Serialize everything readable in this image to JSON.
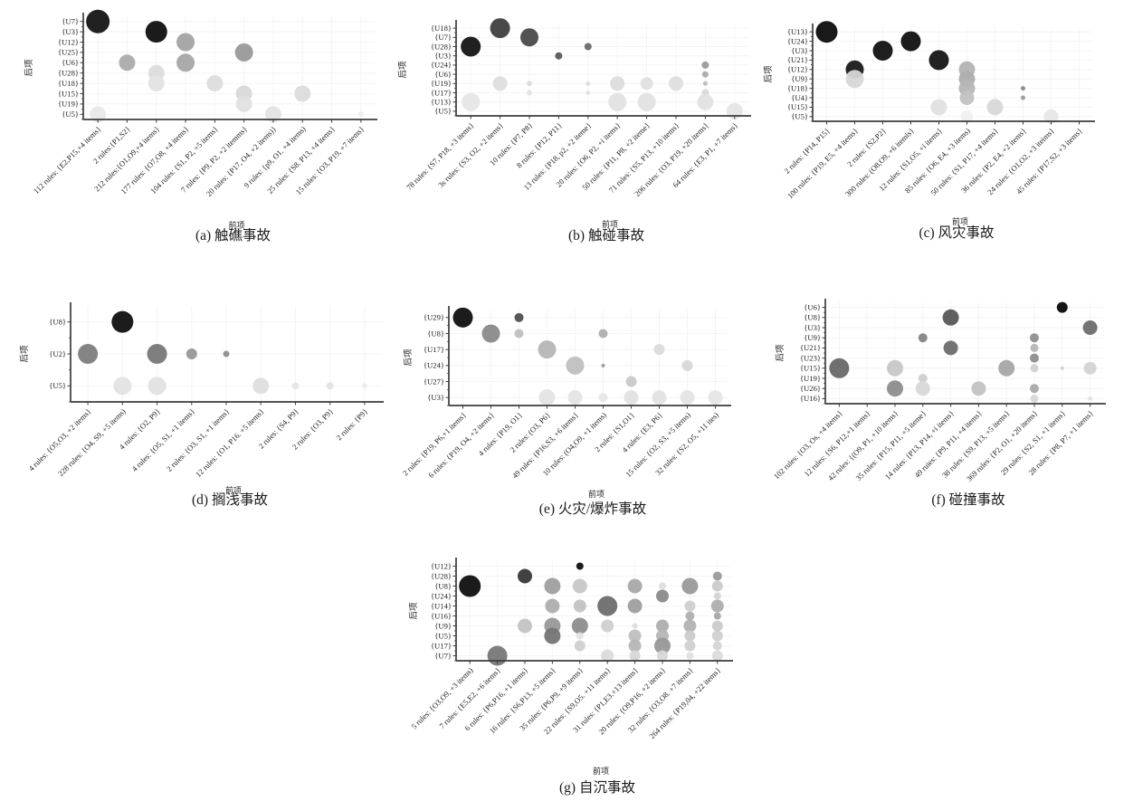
{
  "page": {
    "background": "#ffffff",
    "axis_color": "#3c3c3c",
    "grid_color": "#f4f4f4"
  },
  "bubble_fields": [
    "col_index",
    "row_index",
    "radius_px",
    "fill_gray"
  ],
  "chart_data": [
    {
      "id": "a",
      "type": "bubble",
      "caption": "(a) 触礁事故",
      "xlabel": "前项",
      "ylabel": "后项",
      "rows": [
        "{U7}",
        "{U3}",
        "{U12}",
        "{U25}",
        "{U6}",
        "{U28}",
        "{U18}",
        "{U15}",
        "{U19}",
        "{U5}"
      ],
      "cols": [
        "112 rules: {E2,P15,+4 items}",
        "2 rules:{P1,S2}",
        "212 rules:{O1,O9,+4 items}",
        "177 rules: {O7,O8, +4 items}",
        "104 rules: {S1, P2, +5 items}",
        "7 rules: {P9, P2, +2 itemms}",
        "20 rules: {P17, O4, +2 items)}",
        "9 rules: {p9, O1. +4 items)",
        "25 rules: {S8. P13, +4 items}",
        "15 rules: {O3, P19, +7 items}"
      ],
      "bubbles": [
        [
          0,
          0,
          13,
          "#151515"
        ],
        [
          0,
          9,
          9,
          "#e9e9e9"
        ],
        [
          1,
          4,
          9,
          "#ababab"
        ],
        [
          2,
          1,
          12,
          "#0f0f0f"
        ],
        [
          2,
          5,
          9,
          "#dcdcdc"
        ],
        [
          2,
          6,
          9,
          "#e3e3e3"
        ],
        [
          3,
          2,
          10,
          "#a3a3a3"
        ],
        [
          3,
          4,
          10,
          "#a6a6a6"
        ],
        [
          4,
          6,
          9,
          "#dddddd"
        ],
        [
          5,
          3,
          10,
          "#999999"
        ],
        [
          5,
          7,
          9,
          "#d9d9d9"
        ],
        [
          5,
          8,
          9,
          "#e2e2e2"
        ],
        [
          6,
          9,
          9,
          "#e4e4e4"
        ],
        [
          7,
          7,
          9,
          "#dcdcdc"
        ],
        [
          9,
          9,
          3,
          "#ededed"
        ]
      ]
    },
    {
      "id": "b",
      "type": "bubble",
      "caption": "(b) 触碰事故",
      "xlabel": "前项",
      "ylabel": "后项",
      "rows": [
        "{U18}",
        "{U7}",
        "{U28}",
        "{U3}",
        "{U24}",
        "{U6}",
        "{U19}",
        "{U17}",
        "{U13}",
        "{U5}"
      ],
      "cols": [
        "78 rules: {S7, P18, +3 items}",
        "3s rules: {S3, O2, +2 items}",
        "10 rules: {P7, P8}",
        "8 rules: {P12, P11}",
        "13 rules: {P18, p2, +2 iteme}",
        "20 rules: {O6, P2, +i items}",
        "50 rules: {P11, P8, +2 iteme}",
        "71 rules: {S5, P13, +10 items}",
        "206 rules: {O3, P19, +20 items}",
        "64 rules: {E3, P1, +7 items}"
      ],
      "bubbles": [
        [
          0,
          2,
          11,
          "#141414"
        ],
        [
          0,
          8,
          10,
          "#e6e6e6"
        ],
        [
          1,
          0,
          11,
          "#3f3f3f"
        ],
        [
          1,
          6,
          8,
          "#dedede"
        ],
        [
          2,
          1,
          10,
          "#4a4a4a"
        ],
        [
          2,
          6,
          3,
          "#dcdcdc"
        ],
        [
          2,
          7,
          3,
          "#e3e3e3"
        ],
        [
          3,
          3,
          4,
          "#5a5a5a"
        ],
        [
          4,
          2,
          4,
          "#6a6a6a"
        ],
        [
          4,
          6,
          2.5,
          "#dddddd"
        ],
        [
          4,
          7,
          2.5,
          "#e2e2e2"
        ],
        [
          5,
          6,
          8,
          "#dcdcdc"
        ],
        [
          5,
          8,
          10,
          "#e1e1e1"
        ],
        [
          6,
          6,
          7,
          "#e0e0e0"
        ],
        [
          6,
          8,
          10,
          "#e2e2e2"
        ],
        [
          7,
          6,
          8,
          "#dedede"
        ],
        [
          8,
          4,
          4,
          "#9a9a9a"
        ],
        [
          8,
          5,
          3.5,
          "#ababab"
        ],
        [
          8,
          6,
          2.5,
          "#bdbdbd"
        ],
        [
          8,
          7,
          4,
          "#d8d8d8"
        ],
        [
          8,
          8,
          9,
          "#e2e2e2"
        ],
        [
          9,
          9,
          9,
          "#e5e5e5"
        ]
      ]
    },
    {
      "id": "c",
      "type": "bubble",
      "caption": "(c) 风灾事故",
      "xlabel": "前项",
      "ylabel": "后项",
      "rows": [
        "{U13}",
        "{U24}",
        "{U3}",
        "{U21}",
        "{U12}",
        "{U9}",
        "{U18}",
        "{U4}",
        "{U15}",
        "{U5}"
      ],
      "cols": [
        "2 rules: {P14, P15}",
        "100 rules: {P19, E5, +4 items}",
        "2 rules: {S2,P2}",
        "300 rules: (O8,O9, +6 itemis}",
        "12 rules: {S1,O5, +i items}",
        "85 rules: {O6, E4, +3 items)",
        "50 rules: {S1, P17, +4 items}",
        "36 rules: {P2, E4, +2 items}",
        "24 rules: {O1,O2, +3 iteims}",
        "45 rules: {P17,S2, +3 items}"
      ],
      "bubbles": [
        [
          0,
          0,
          12,
          "#0d0d0d"
        ],
        [
          1,
          4,
          10,
          "#1a1a1a"
        ],
        [
          1,
          5,
          10,
          "#d7d7d7"
        ],
        [
          2,
          2,
          11,
          "#121212"
        ],
        [
          3,
          1,
          11,
          "#101010"
        ],
        [
          4,
          3,
          11,
          "#161616"
        ],
        [
          4,
          8,
          9,
          "#e0e0e0"
        ],
        [
          5,
          4,
          9,
          "#b3b3b3"
        ],
        [
          5,
          5,
          9,
          "#aeaeae"
        ],
        [
          5,
          6,
          9,
          "#b6b6b6"
        ],
        [
          5,
          7,
          8,
          "#c2c2c2"
        ],
        [
          5,
          9,
          7,
          "#f1f1f1"
        ],
        [
          6,
          8,
          9,
          "#d8d8d8"
        ],
        [
          7,
          6,
          2.5,
          "#8a8a8a"
        ],
        [
          7,
          7,
          2.5,
          "#9a9a9a"
        ],
        [
          8,
          9,
          8,
          "#e7e7e7"
        ]
      ]
    },
    {
      "id": "d",
      "type": "bubble",
      "caption": "(d) 搁浅事故",
      "xlabel": "前项",
      "ylabel": "后项",
      "rows": [
        "{U8}",
        "{U2}",
        "{U5}"
      ],
      "cols": [
        "4 rules: {O5,O3, +2 items}",
        "228 rules: {O4, S9, +5 items)",
        "4 rules: {O2, P9}",
        "4 rules: {O5, S1, +1 items}",
        "2 rules: {O3, S1, +1 items}",
        "12 rules: {O1, P16. +5 items}",
        "2 rules: {S4, P9}",
        "2 rules: {O3, P9}",
        "2 rules: {P9}"
      ],
      "bubbles": [
        [
          0,
          1,
          11,
          "#7d7d7d"
        ],
        [
          1,
          0,
          12,
          "#101010"
        ],
        [
          1,
          2,
          10,
          "#e3e3e3"
        ],
        [
          2,
          1,
          11,
          "#787878"
        ],
        [
          2,
          2,
          10,
          "#e1e1e1"
        ],
        [
          3,
          1,
          6,
          "#979797"
        ],
        [
          4,
          1,
          3.5,
          "#8d8d8d"
        ],
        [
          5,
          2,
          9,
          "#dedede"
        ],
        [
          6,
          2,
          4,
          "#e6e6e6"
        ],
        [
          7,
          2,
          4,
          "#e3e3e3"
        ],
        [
          8,
          2,
          3,
          "#ececec"
        ]
      ]
    },
    {
      "id": "e",
      "type": "bubble",
      "caption": "(e) 火灾/爆炸事故",
      "xlabel": "前项",
      "ylabel": "后项",
      "rows": [
        "{U29}",
        "{U8}",
        "{U17}",
        "{U24}",
        "{U27}",
        "{U3}"
      ],
      "cols": [
        "2 rules: {P19, P6,+1 items}",
        "6 rules: {P19, O4, +2 items}",
        "4 rules: {P19, O1}",
        "2 rules: (O3, P6}",
        "49 rules: {P16,S3, +6 items}",
        "10 rules: (O4,O9, +1 items)",
        "2 rules: {S1,O1}",
        "4 rules: {E3, P6}",
        "15 rules: {O2, S3, +5 items)",
        "32 rules: {S2, O5, +11 ites)"
      ],
      "bubbles": [
        [
          0,
          0,
          11,
          "#101010"
        ],
        [
          1,
          1,
          10,
          "#8a8a8a"
        ],
        [
          2,
          0,
          5,
          "#4f4f4f"
        ],
        [
          2,
          1,
          5,
          "#bfbfbf"
        ],
        [
          3,
          2,
          10,
          "#b6b6b6"
        ],
        [
          3,
          5,
          9,
          "#e4e4e4"
        ],
        [
          4,
          3,
          10,
          "#bfbfbf"
        ],
        [
          4,
          5,
          8,
          "#e4e4e4"
        ],
        [
          5,
          1,
          5,
          "#aeaeae"
        ],
        [
          5,
          3,
          2,
          "#9a9a9a"
        ],
        [
          5,
          5,
          5,
          "#e7e7e7"
        ],
        [
          6,
          4,
          6,
          "#c9c9c9"
        ],
        [
          6,
          5,
          8,
          "#e2e2e2"
        ],
        [
          7,
          2,
          6,
          "#dbdbdb"
        ],
        [
          7,
          5,
          8,
          "#e2e2e2"
        ],
        [
          8,
          3,
          6,
          "#d7d7d7"
        ],
        [
          8,
          5,
          8,
          "#e4e4e4"
        ],
        [
          9,
          5,
          8,
          "#e6e6e6"
        ]
      ]
    },
    {
      "id": "f",
      "type": "bubble",
      "caption": "(f) 碰撞事故",
      "xlabel": "",
      "ylabel": "后项",
      "rows": [
        "{U6}",
        "{U8}",
        "{U3}",
        "{U9}",
        "{U21}",
        "{U23}",
        "{U15}",
        "{U19}",
        "{U26}",
        "{U16}"
      ],
      "cols": [
        "102 rules: {O3, Os, +4 items}",
        "12 rules: {S6, P12,+1 items}",
        "42 rules: {(O9, P1, +10 items}",
        "35 rules: {P15, P11, +5 iteme}",
        "14 rules: {P13, P14, +i items}",
        "49 ruies: {P9, P11, +4 items}",
        "38 rules: {S9, P13, +5 items}",
        "369 rules: {P2, O1, +20 items}",
        "29 rules: {S2, S1, +1 items}",
        "28 rules: {P8, P7, +1 items}"
      ],
      "bubbles": [
        [
          0,
          6,
          11,
          "#686868"
        ],
        [
          2,
          6,
          9,
          "#c7c7c7"
        ],
        [
          2,
          8,
          9,
          "#8d8d8d"
        ],
        [
          3,
          3,
          5,
          "#858585"
        ],
        [
          3,
          7,
          5,
          "#cfcfcf"
        ],
        [
          3,
          8,
          8,
          "#d8d8d8"
        ],
        [
          4,
          1,
          9,
          "#575757"
        ],
        [
          4,
          4,
          8,
          "#6d6d6d"
        ],
        [
          5,
          8,
          8,
          "#c3c3c3"
        ],
        [
          6,
          6,
          9,
          "#a7a7a7"
        ],
        [
          7,
          3,
          5,
          "#8f8f8f"
        ],
        [
          7,
          4,
          4.5,
          "#b6b6b6"
        ],
        [
          7,
          5,
          5,
          "#8d8d8d"
        ],
        [
          7,
          6,
          4.5,
          "#d1d1d1"
        ],
        [
          7,
          8,
          5,
          "#a9a9a9"
        ],
        [
          7,
          9,
          4.5,
          "#d7d7d7"
        ],
        [
          8,
          0,
          6,
          "#0a0a0a"
        ],
        [
          8,
          6,
          2,
          "#d0d0d0"
        ],
        [
          9,
          2,
          8,
          "#6d6d6d"
        ],
        [
          9,
          6,
          7,
          "#d4d4d4"
        ],
        [
          9,
          9,
          2.5,
          "#e0e0e0"
        ]
      ]
    },
    {
      "id": "g",
      "type": "bubble",
      "caption": "(g) 自沉事故",
      "xlabel": "前项",
      "ylabel": "后项",
      "rows": [
        "{U12}",
        "{U28}",
        "{U8}",
        "{U24}",
        "{U14}",
        "{U16}",
        "{U9}",
        "{U5}",
        "{U17}",
        "{U7}"
      ],
      "cols": [
        "5 rules: {O3,O9, +3 items)",
        "7 rules: {E5,E2, +6 items}",
        "6 rules: {P6,P16, +1 items}",
        "16 rules: {S6,P13, +5 items}",
        "35 rules: {P6,P9, +9 items}",
        "22 rules: {S9,O5. +11 items}",
        "31 rules: {P1,E3.+13 items}",
        "20 rules: {O9,P16, +2 items}",
        "32 rules: {O3,O8. +7 items}",
        "264 rules: {P19,04, +22 items}"
      ],
      "bubbles": [
        [
          0,
          2,
          12,
          "#0f0f0f"
        ],
        [
          1,
          9,
          11,
          "#787878"
        ],
        [
          2,
          1,
          8,
          "#383838"
        ],
        [
          2,
          6,
          8,
          "#c3c3c3"
        ],
        [
          3,
          2,
          9,
          "#9f9f9f"
        ],
        [
          3,
          4,
          8,
          "#aeaeae"
        ],
        [
          3,
          6,
          9,
          "#989898"
        ],
        [
          3,
          7,
          9,
          "#757575"
        ],
        [
          4,
          0,
          4,
          "#101010"
        ],
        [
          4,
          2,
          8,
          "#c7c7c7"
        ],
        [
          4,
          4,
          7,
          "#c3c3c3"
        ],
        [
          4,
          6,
          9,
          "#8d8d8d"
        ],
        [
          4,
          7,
          4,
          "#e1e1e1"
        ],
        [
          4,
          8,
          6,
          "#d0d0d0"
        ],
        [
          5,
          4,
          11,
          "#6d6d6d"
        ],
        [
          5,
          6,
          7,
          "#cfcfcf"
        ],
        [
          5,
          9,
          7,
          "#dbdbdb"
        ],
        [
          6,
          2,
          8,
          "#a9a9a9"
        ],
        [
          6,
          4,
          8,
          "#9f9f9f"
        ],
        [
          6,
          6,
          3,
          "#dcdcdc"
        ],
        [
          6,
          7,
          7,
          "#bfbfbf"
        ],
        [
          6,
          8,
          7,
          "#b6b6b6"
        ],
        [
          6,
          9,
          6,
          "#d7d7d7"
        ],
        [
          7,
          2,
          4,
          "#dddddd"
        ],
        [
          7,
          3,
          7,
          "#8a8a8a"
        ],
        [
          7,
          6,
          7,
          "#aeaeae"
        ],
        [
          7,
          7,
          7,
          "#b6b6b6"
        ],
        [
          7,
          8,
          9,
          "#989898"
        ],
        [
          7,
          9,
          6,
          "#d7d7d7"
        ],
        [
          8,
          2,
          9,
          "#9a9a9a"
        ],
        [
          8,
          4,
          6,
          "#cfcfcf"
        ],
        [
          8,
          5,
          5,
          "#aeaeae"
        ],
        [
          8,
          6,
          7,
          "#b3b3b3"
        ],
        [
          8,
          7,
          6,
          "#cbcbcb"
        ],
        [
          8,
          8,
          6,
          "#d0d0d0"
        ],
        [
          8,
          9,
          4,
          "#e0e0e0"
        ],
        [
          9,
          1,
          5,
          "#9a9a9a"
        ],
        [
          9,
          2,
          6,
          "#cbcbcb"
        ],
        [
          9,
          3,
          4,
          "#d4d4d4"
        ],
        [
          9,
          4,
          7,
          "#aeaeae"
        ],
        [
          9,
          5,
          4,
          "#a7a7a7"
        ],
        [
          9,
          6,
          6,
          "#cbcbcb"
        ],
        [
          9,
          7,
          6,
          "#d0d0d0"
        ],
        [
          9,
          8,
          5,
          "#d4d4d4"
        ],
        [
          9,
          9,
          6,
          "#dbdbdb"
        ]
      ]
    }
  ]
}
